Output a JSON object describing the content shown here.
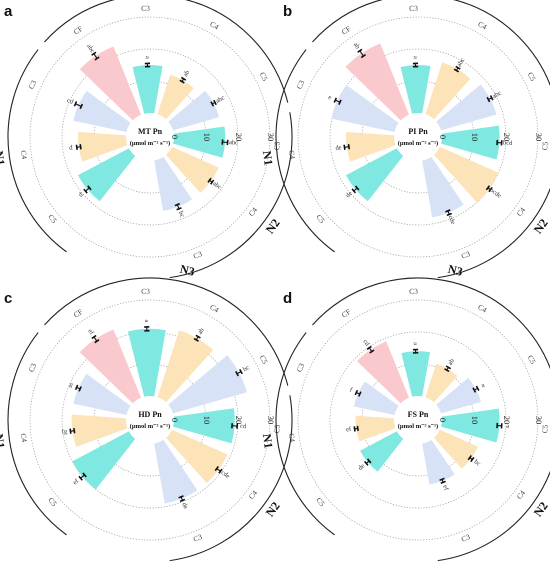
{
  "colors": {
    "teal": "#7FE8E0",
    "yellow": "#FCE3B8",
    "blue": "#D7E2F6",
    "pink": "#F9C9CD",
    "grid": "#999999",
    "arc": "#222222",
    "error_bar": "#111111"
  },
  "chart_data": [
    {
      "type": "radial-bar",
      "panel_letter": "a",
      "title": "MT Pn",
      "unit": "(μmol m⁻² s⁻¹)",
      "radial_ticks": [
        "0",
        "10",
        "20",
        "30"
      ],
      "rlim": [
        0,
        30
      ],
      "categories": [
        "C5",
        "C4",
        "C3",
        "CF",
        "C3",
        "C4",
        "C5",
        "C5",
        "C4",
        "C3"
      ],
      "groups": [
        {
          "name": "N1",
          "categories": [
            "C5",
            "C4",
            "C3"
          ]
        },
        {
          "name": "N3",
          "categories": [
            "CF",
            "C3",
            "C4",
            "C5"
          ]
        },
        {
          "name": "N2",
          "categories": [
            "C5",
            "C4",
            "C3"
          ]
        }
      ],
      "colors": [
        "teal",
        "yellow",
        "blue",
        "pink",
        "teal",
        "yellow",
        "blue",
        "teal",
        "yellow",
        "blue"
      ],
      "values": [
        18,
        15,
        17,
        23,
        15,
        13,
        15,
        16,
        16,
        16
      ],
      "errors": [
        0.8,
        0.6,
        1.0,
        0.9,
        0.5,
        0.5,
        0.5,
        0.8,
        0.5,
        0.7
      ],
      "letters": [
        "d",
        "d",
        "cd",
        "abc",
        "a",
        "ab",
        "abc",
        "abc",
        "abc",
        "bc"
      ]
    },
    {
      "type": "radial-bar",
      "panel_letter": "b",
      "title": "PI Pn",
      "unit": "(μmol m⁻² s⁻¹)",
      "radial_ticks": [
        "0",
        "10",
        "20",
        "30"
      ],
      "rlim": [
        0,
        30
      ],
      "categories": [
        "C5",
        "C4",
        "C3",
        "CF",
        "C3",
        "C4",
        "C5",
        "C5",
        "C4",
        "C3"
      ],
      "groups": [
        {
          "name": "N1",
          "categories": [
            "C5",
            "C4",
            "C3"
          ]
        },
        {
          "name": "N3",
          "categories": [
            "CF",
            "C3",
            "C4",
            "C5"
          ]
        },
        {
          "name": "N2",
          "categories": [
            "C5",
            "C4",
            "C3"
          ]
        }
      ],
      "colors": [
        "teal",
        "yellow",
        "blue",
        "pink",
        "teal",
        "yellow",
        "blue",
        "teal",
        "yellow",
        "blue"
      ],
      "values": [
        18,
        15,
        20,
        24,
        15,
        17,
        18,
        18,
        20,
        18
      ],
      "errors": [
        0.7,
        0.7,
        0.8,
        1.0,
        0.5,
        0.5,
        0.6,
        0.7,
        0.5,
        0.6
      ],
      "letters": [
        "de",
        "de",
        "e",
        "ab",
        "a",
        "abc",
        "abc",
        "bcd",
        "bcde",
        "cde"
      ]
    },
    {
      "type": "radial-bar",
      "panel_letter": "c",
      "title": "HD Pn",
      "unit": "(μmol m⁻² s⁻¹)",
      "radial_ticks": [
        "0",
        "10",
        "20",
        "30"
      ],
      "rlim": [
        0,
        30
      ],
      "categories": [
        "C5",
        "C4",
        "C3",
        "CF",
        "C3",
        "C4",
        "C5",
        "C5",
        "C4",
        "C3"
      ],
      "groups": [
        {
          "name": "N1",
          "categories": [
            "C5",
            "C4",
            "C3"
          ]
        },
        {
          "name": "N3",
          "categories": [
            "CF",
            "C3",
            "C4",
            "C5"
          ]
        },
        {
          "name": "N2",
          "categories": [
            "C5",
            "C4",
            "C3"
          ]
        }
      ],
      "colors": [
        "teal",
        "yellow",
        "blue",
        "pink",
        "teal",
        "yellow",
        "blue",
        "teal",
        "yellow",
        "blue"
      ],
      "values": [
        20,
        17,
        17,
        23,
        21,
        22,
        24,
        19,
        19,
        19
      ],
      "errors": [
        0.8,
        0.6,
        0.6,
        0.8,
        0.6,
        0.6,
        0.7,
        0.8,
        0.7,
        0.6
      ],
      "letters": [
        "ef",
        "fg",
        "g",
        "ef",
        "a",
        "ab",
        "bc",
        "cd",
        "cde",
        "de"
      ]
    },
    {
      "type": "radial-bar",
      "panel_letter": "d",
      "title": "FS Pn",
      "unit": "(μmol m⁻² s⁻¹)",
      "radial_ticks": [
        "0",
        "10",
        "20",
        "30"
      ],
      "rlim": [
        0,
        30
      ],
      "categories": [
        "C5",
        "C4",
        "C3",
        "CF",
        "C3",
        "C4",
        "C5",
        "C5",
        "C4",
        "C3"
      ],
      "groups": [
        {
          "name": "N1",
          "categories": [
            "C5",
            "C4",
            "C3"
          ]
        },
        {
          "name": "N3",
          "categories": [
            "CF",
            "C3",
            "C4",
            "C5"
          ]
        },
        {
          "name": "N2",
          "categories": [
            "C5",
            "C4",
            "C3"
          ]
        }
      ],
      "colors": [
        "teal",
        "yellow",
        "blue",
        "pink",
        "teal",
        "yellow",
        "blue",
        "teal",
        "yellow",
        "blue"
      ],
      "values": [
        13,
        12,
        13,
        19,
        14,
        11,
        13,
        18,
        13,
        13
      ],
      "errors": [
        0.6,
        0.5,
        0.6,
        0.7,
        0.5,
        0.5,
        0.6,
        0.7,
        0.5,
        0.5
      ],
      "letters": [
        "de",
        "ef",
        "f",
        "cd",
        "a",
        "ab",
        "a",
        "a",
        "bc",
        "ef"
      ]
    }
  ]
}
